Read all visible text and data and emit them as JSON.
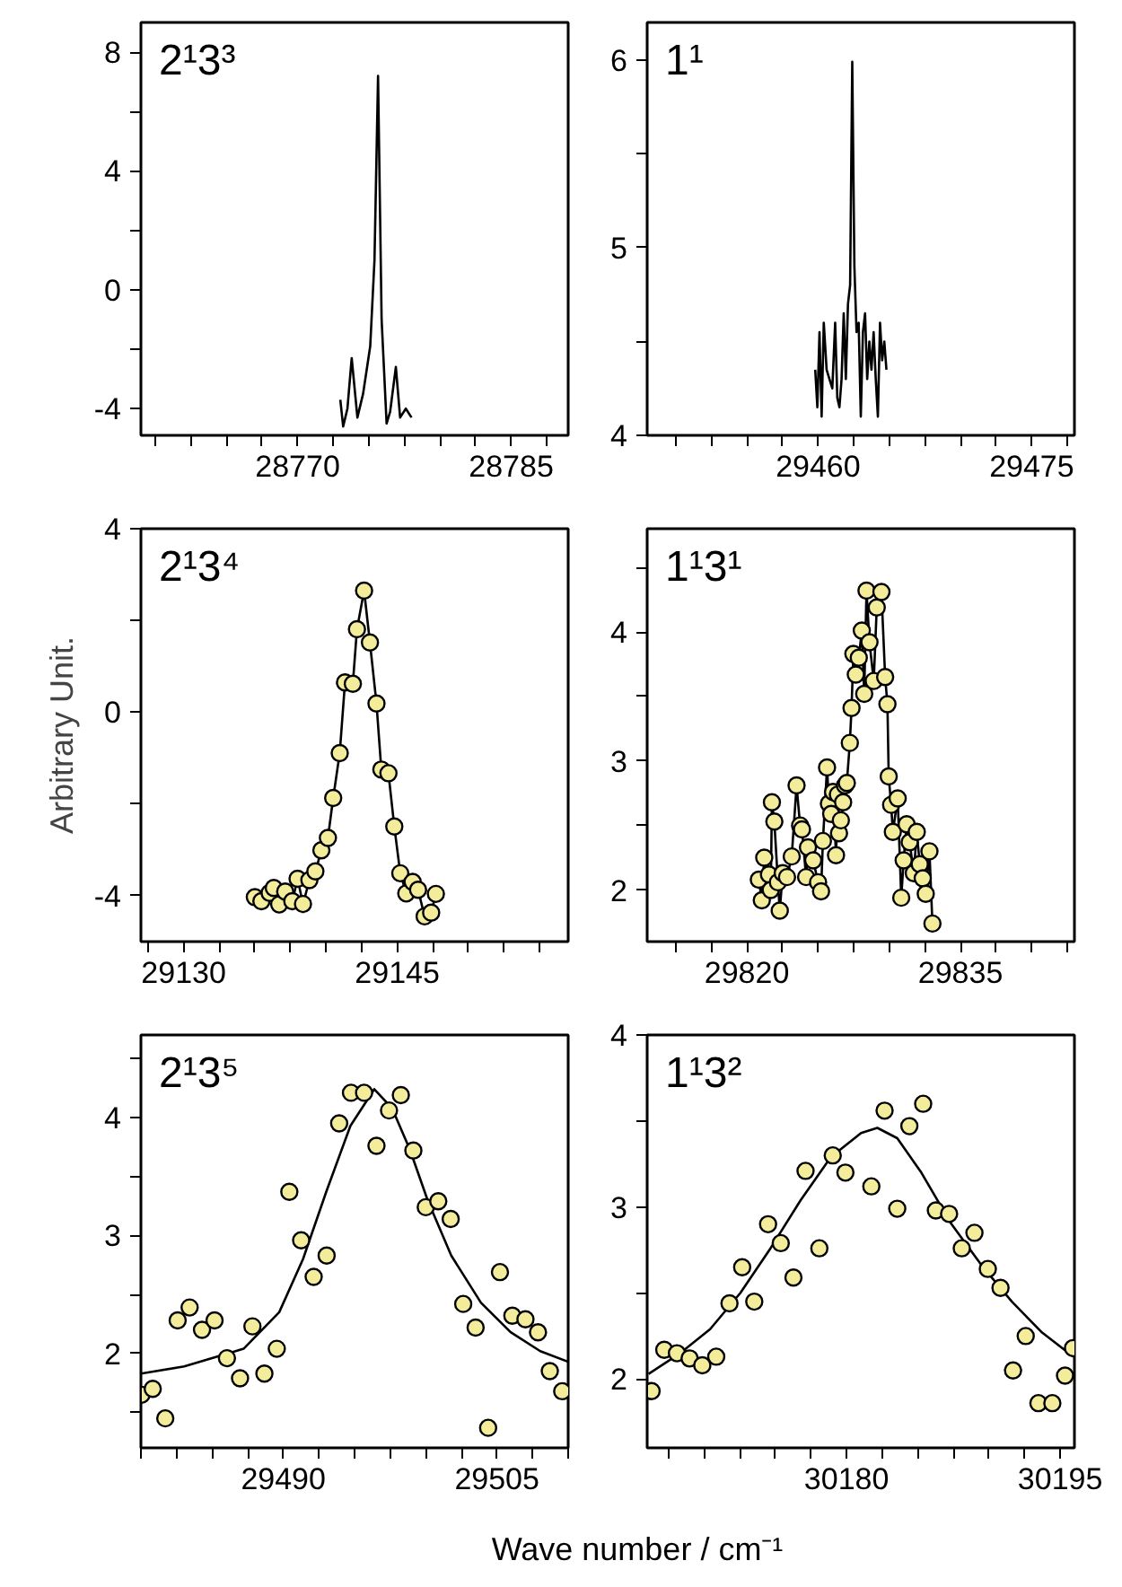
{
  "chart_data": [
    {
      "type": "line",
      "title": "2¹3³",
      "xlim": [
        28759,
        28789
      ],
      "ylim": [
        -4.9,
        9
      ],
      "xticks": [
        {
          "value": 28760,
          "label": null
        },
        {
          "value": 28762.5,
          "label": null
        },
        {
          "value": 28765,
          "label": null
        },
        {
          "value": 28767.5,
          "label": null
        },
        28770,
        {
          "value": 28772.5,
          "label": null
        },
        {
          "value": 28775,
          "label": null
        },
        {
          "value": 28777.5,
          "label": null
        },
        {
          "value": 28780,
          "label": null
        },
        {
          "value": 28782.5,
          "label": null
        },
        28785,
        {
          "value": 28787.5,
          "label": null
        }
      ],
      "yticks": [
        -4,
        {
          "value": -2,
          "label": null
        },
        0,
        {
          "value": 2,
          "label": null
        },
        4,
        {
          "value": 6,
          "label": null
        },
        8
      ],
      "series": [
        {
          "color": "#000000",
          "x": [
            28773.0,
            28773.2,
            28773.5,
            28773.8,
            28774.2,
            28774.6,
            28775.1,
            28775.4,
            28775.65,
            28775.9,
            28776.25,
            28776.5,
            28776.9,
            28777.2,
            28777.6,
            28778.0
          ],
          "values": [
            -3.7,
            -4.6,
            -4.0,
            -2.3,
            -4.3,
            -3.5,
            -1.9,
            1.0,
            7.2,
            -1.0,
            -4.5,
            -4.1,
            -2.6,
            -4.3,
            -4.0,
            -4.3
          ]
        }
      ]
    },
    {
      "type": "line",
      "title": "1¹",
      "xlim": [
        29448,
        29478
      ],
      "ylim": [
        4,
        6.2
      ],
      "xticks": [
        {
          "value": 29450,
          "label": null
        },
        {
          "value": 29452.5,
          "label": null
        },
        {
          "value": 29455,
          "label": null
        },
        {
          "value": 29457.5,
          "label": null
        },
        29460,
        {
          "value": 29462.5,
          "label": null
        },
        {
          "value": 29465,
          "label": null
        },
        {
          "value": 29467.5,
          "label": null
        },
        {
          "value": 29470,
          "label": null
        },
        {
          "value": 29472.5,
          "label": null
        },
        29475,
        {
          "value": 29477.5,
          "label": null
        }
      ],
      "yticks": [
        4,
        {
          "value": 4.5,
          "label": null
        },
        5,
        {
          "value": 5.5,
          "label": null
        },
        6
      ],
      "series": [
        {
          "color": "#000000",
          "x": [
            29459.8,
            29459.95,
            29460.1,
            29460.25,
            29460.4,
            29460.6,
            29460.8,
            29461.0,
            29461.2,
            29461.35,
            29461.5,
            29461.65,
            29461.8,
            29461.95,
            29462.1,
            29462.25,
            29462.4,
            29462.55,
            29462.7,
            29462.85,
            29463.0,
            29463.15,
            29463.3,
            29463.45,
            29463.6,
            29463.75,
            29463.9,
            29464.05,
            29464.2,
            29464.35,
            29464.5,
            29464.65,
            29464.8
          ],
          "values": [
            4.35,
            4.15,
            4.55,
            4.1,
            4.6,
            4.35,
            4.3,
            4.25,
            4.6,
            4.2,
            4.15,
            4.3,
            4.65,
            4.3,
            4.7,
            4.8,
            5.99,
            4.9,
            4.55,
            4.6,
            4.1,
            4.55,
            4.65,
            4.3,
            4.5,
            4.35,
            4.55,
            4.3,
            4.1,
            4.6,
            4.4,
            4.5,
            4.35
          ]
        }
      ]
    },
    {
      "type": "scatter",
      "title": "2¹3⁴",
      "ylabel": "Arbitrary Unit.",
      "xlim": [
        29127,
        29157
      ],
      "ylim": [
        -5,
        4
      ],
      "xticks": [
        {
          "value": 29127.5,
          "label": null
        },
        29130,
        {
          "value": 29132.5,
          "label": null
        },
        {
          "value": 29135,
          "label": null
        },
        {
          "value": 29137.5,
          "label": null
        },
        {
          "value": 29140,
          "label": null
        },
        {
          "value": 29142.5,
          "label": null
        },
        29145,
        {
          "value": 29147.5,
          "label": null
        },
        {
          "value": 29150,
          "label": null
        },
        {
          "value": 29152.5,
          "label": null
        },
        {
          "value": 29155,
          "label": null
        }
      ],
      "yticks": [
        -4,
        {
          "value": -2,
          "label": null
        },
        0,
        {
          "value": 2,
          "label": null
        },
        4
      ],
      "series": [
        {
          "type": "line",
          "color": "#000000",
          "x": [
            29135.0,
            29135.46,
            29136.04,
            29136.33,
            29136.71,
            29137.13,
            29137.63,
            29138.0,
            29138.38,
            29138.83,
            29139.25,
            29139.67,
            29140.13,
            29140.5,
            29140.96,
            29141.33,
            29141.88,
            29142.17,
            29142.67,
            29143.08,
            29143.54,
            29143.88,
            29144.38,
            29144.79,
            29145.21,
            29145.63,
            29146.08,
            29146.46,
            29146.92,
            29147.38,
            29147.71
          ],
          "values": [
            -4.03,
            -4.12,
            -3.94,
            -3.83,
            -4.19,
            -3.91,
            -4.12,
            -3.63,
            -4.18,
            -3.66,
            -3.47,
            -3.01,
            -2.74,
            -1.87,
            -0.89,
            0.65,
            0.62,
            1.81,
            2.65,
            1.52,
            0.19,
            -1.25,
            -1.33,
            -2.49,
            -3.51,
            -3.95,
            -3.7,
            -3.87,
            -4.45,
            -4.37,
            -3.96
          ]
        },
        {
          "marker": "circle",
          "color": "#f2ec9b",
          "x": [
            29135.0,
            29135.46,
            29136.04,
            29136.33,
            29136.71,
            29137.13,
            29137.63,
            29138.0,
            29138.38,
            29138.83,
            29139.25,
            29139.67,
            29140.13,
            29140.5,
            29140.96,
            29141.33,
            29141.88,
            29142.17,
            29142.67,
            29143.08,
            29143.54,
            29143.88,
            29144.38,
            29144.79,
            29145.21,
            29145.63,
            29146.08,
            29146.46,
            29146.92,
            29147.38,
            29147.71
          ],
          "values": [
            -4.03,
            -4.12,
            -3.94,
            -3.83,
            -4.19,
            -3.91,
            -4.12,
            -3.63,
            -4.18,
            -3.66,
            -3.47,
            -3.01,
            -2.74,
            -1.87,
            -0.89,
            0.65,
            0.62,
            1.81,
            2.65,
            1.52,
            0.19,
            -1.25,
            -1.33,
            -2.49,
            -3.51,
            -3.95,
            -3.7,
            -3.87,
            -4.45,
            -4.37,
            -3.96
          ]
        }
      ]
    },
    {
      "type": "scatter",
      "title": "1¹3¹",
      "xlim": [
        29813,
        29843
      ],
      "ylim": [
        1.6,
        4.8
      ],
      "xticks": [
        {
          "value": 29815,
          "label": null
        },
        {
          "value": 29817.5,
          "label": null
        },
        29820,
        {
          "value": 29822.5,
          "label": null
        },
        {
          "value": 29825,
          "label": null
        },
        {
          "value": 29827.5,
          "label": null
        },
        {
          "value": 29830,
          "label": null
        },
        {
          "value": 29832.5,
          "label": null
        },
        29835,
        {
          "value": 29837.5,
          "label": null
        },
        {
          "value": 29840,
          "label": null
        },
        {
          "value": 29842.5,
          "label": null
        }
      ],
      "yticks": [
        2,
        {
          "value": 2.5,
          "label": null
        },
        3,
        {
          "value": 3.5,
          "label": null
        },
        4,
        {
          "value": 4.5,
          "label": null
        }
      ],
      "series": [
        {
          "type": "line",
          "color": "#000000",
          "x": [
            29820.84,
            29821.05,
            29821.22,
            29821.55,
            29821.68,
            29821.76,
            29821.93,
            29822.18,
            29822.31,
            29822.52,
            29822.82,
            29823.15,
            29823.49,
            29823.74,
            29823.87,
            29824.16,
            29824.29,
            29824.66,
            29825.0,
            29825.21,
            29825.34,
            29825.63,
            29825.76,
            29825.92,
            29826.05,
            29826.26,
            29826.39,
            29826.47,
            29826.6,
            29826.76,
            29826.89,
            29827.02,
            29827.23,
            29827.35,
            29827.48,
            29827.65,
            29827.86,
            29828.07,
            29828.24,
            29828.4,
            29828.61,
            29828.91,
            29829.12,
            29829.45,
            29829.71,
            29829.87,
            29829.96,
            29830.13,
            29830.25,
            29830.59,
            29830.84,
            29831.01,
            29831.22,
            29831.43,
            29831.72,
            29831.93,
            29832.14,
            29832.35,
            29832.56,
            29832.82,
            29833.03
          ],
          "values": [
            2.08,
            1.92,
            2.25,
            2.12,
            2.0,
            2.68,
            2.53,
            2.06,
            1.84,
            2.13,
            2.1,
            2.26,
            2.81,
            2.5,
            2.47,
            2.1,
            2.33,
            2.23,
            2.06,
            1.99,
            2.38,
            2.95,
            2.67,
            2.59,
            2.76,
            2.27,
            2.74,
            2.44,
            2.54,
            2.68,
            2.81,
            2.83,
            3.14,
            3.41,
            3.83,
            3.67,
            3.8,
            4.01,
            3.52,
            4.32,
            3.92,
            3.62,
            4.19,
            4.31,
            3.65,
            3.44,
            2.88,
            2.66,
            2.45,
            2.71,
            1.94,
            2.23,
            2.51,
            2.37,
            2.13,
            2.45,
            2.2,
            2.09,
            1.97,
            2.3,
            1.74
          ]
        },
        {
          "marker": "circle",
          "color": "#f2ec9b",
          "x": [
            29820.84,
            29821.05,
            29821.22,
            29821.55,
            29821.68,
            29821.76,
            29821.93,
            29822.18,
            29822.31,
            29822.52,
            29822.82,
            29823.15,
            29823.49,
            29823.74,
            29823.87,
            29824.16,
            29824.29,
            29824.66,
            29825.0,
            29825.21,
            29825.34,
            29825.63,
            29825.76,
            29825.92,
            29826.05,
            29826.26,
            29826.39,
            29826.47,
            29826.6,
            29826.76,
            29826.89,
            29827.02,
            29827.23,
            29827.35,
            29827.48,
            29827.65,
            29827.86,
            29828.07,
            29828.24,
            29828.4,
            29828.61,
            29828.91,
            29829.12,
            29829.45,
            29829.71,
            29829.87,
            29829.96,
            29830.13,
            29830.25,
            29830.59,
            29830.84,
            29831.01,
            29831.22,
            29831.43,
            29831.72,
            29831.93,
            29832.14,
            29832.35,
            29832.56,
            29832.82,
            29833.03
          ],
          "values": [
            2.08,
            1.92,
            2.25,
            2.12,
            2.0,
            2.68,
            2.53,
            2.06,
            1.84,
            2.13,
            2.1,
            2.26,
            2.81,
            2.5,
            2.47,
            2.1,
            2.33,
            2.23,
            2.06,
            1.99,
            2.38,
            2.95,
            2.67,
            2.59,
            2.76,
            2.27,
            2.74,
            2.44,
            2.54,
            2.68,
            2.81,
            2.83,
            3.14,
            3.41,
            3.83,
            3.67,
            3.8,
            4.01,
            3.52,
            4.32,
            3.92,
            3.62,
            4.19,
            4.31,
            3.65,
            3.44,
            2.88,
            2.66,
            2.45,
            2.71,
            1.94,
            2.23,
            2.51,
            2.37,
            2.13,
            2.45,
            2.2,
            2.09,
            1.97,
            2.3,
            1.74
          ]
        }
      ]
    },
    {
      "type": "scatter",
      "title": "2¹3⁵",
      "xlabel": "Wave number / cm⁻¹",
      "xlim": [
        29480,
        29510
      ],
      "ylim": [
        1.2,
        4.7
      ],
      "xticks": [
        {
          "value": 29480,
          "label": null
        },
        {
          "value": 29482.5,
          "label": null
        },
        {
          "value": 29485,
          "label": null
        },
        {
          "value": 29487.5,
          "label": null
        },
        29490,
        {
          "value": 29492.5,
          "label": null
        },
        {
          "value": 29495,
          "label": null
        },
        {
          "value": 29497.5,
          "label": null
        },
        {
          "value": 29500,
          "label": null
        },
        {
          "value": 29502.5,
          "label": null
        },
        29505,
        {
          "value": 29507.5,
          "label": null
        },
        {
          "value": 29510,
          "label": null
        }
      ],
      "yticks": [
        {
          "value": 1.5,
          "label": null
        },
        2,
        {
          "value": 2.5,
          "label": null
        },
        3,
        {
          "value": 3.5,
          "label": null
        },
        4,
        {
          "value": 4.5,
          "label": null
        }
      ],
      "series": [
        {
          "type": "line",
          "color": "#000000",
          "x": [
            29480,
            29483.04,
            29487.21,
            29489.71,
            29491.38,
            29493.04,
            29494.71,
            29496.38,
            29497.63,
            29498.88,
            29500.13,
            29501.79,
            29503.88,
            29505.96,
            29508.04,
            29510
          ],
          "values": [
            1.83,
            1.89,
            2.04,
            2.35,
            2.8,
            3.38,
            3.93,
            4.24,
            4.08,
            3.73,
            3.3,
            2.83,
            2.43,
            2.18,
            2.02,
            1.93
          ]
        },
        {
          "marker": "circle",
          "color": "#f2ec9b",
          "x": [
            29480.04,
            29480.83,
            29481.71,
            29482.58,
            29483.42,
            29484.29,
            29485.17,
            29486.04,
            29486.96,
            29487.83,
            29488.67,
            29489.54,
            29490.42,
            29491.25,
            29492.13,
            29493.04,
            29493.92,
            29494.75,
            29495.67,
            29496.54,
            29497.42,
            29498.25,
            29499.13,
            29500.0,
            29500.88,
            29501.75,
            29502.63,
            29503.5,
            29504.38,
            29505.21,
            29506.08,
            29507.0,
            29507.88,
            29508.71,
            29509.58
          ],
          "values": [
            1.65,
            1.7,
            1.45,
            2.28,
            2.39,
            2.2,
            2.28,
            1.96,
            1.79,
            2.23,
            1.83,
            2.04,
            3.37,
            2.96,
            2.65,
            2.83,
            3.95,
            4.21,
            4.21,
            3.76,
            4.06,
            4.19,
            3.72,
            3.24,
            3.29,
            3.14,
            2.42,
            2.22,
            1.37,
            2.69,
            2.32,
            2.29,
            2.18,
            1.85,
            1.68
          ]
        }
      ]
    },
    {
      "type": "scatter",
      "title": "1¹3²",
      "xlim": [
        30166,
        30196
      ],
      "ylim": [
        1.6,
        4
      ],
      "xticks": [
        {
          "value": 30167.5,
          "label": null
        },
        {
          "value": 30170,
          "label": null
        },
        {
          "value": 30172.5,
          "label": null
        },
        {
          "value": 30175,
          "label": null
        },
        {
          "value": 30177.5,
          "label": null
        },
        30180,
        {
          "value": 30182.5,
          "label": null
        },
        {
          "value": 30185,
          "label": null
        },
        {
          "value": 30187.5,
          "label": null
        },
        {
          "value": 30190,
          "label": null
        },
        {
          "value": 30192.5,
          "label": null
        },
        30195
      ],
      "yticks": [
        2,
        {
          "value": 2.5,
          "label": null
        },
        3,
        {
          "value": 3.5,
          "label": null
        },
        4
      ],
      "series": [
        {
          "type": "line",
          "color": "#000000",
          "x": [
            30166.1,
            30168.31,
            30170.42,
            30172.54,
            30174.66,
            30176.78,
            30178.9,
            30181.02,
            30182.16,
            30183.56,
            30185.25,
            30187.37,
            30189.49,
            30191.61,
            30193.73,
            30195.93
          ],
          "values": [
            2.03,
            2.15,
            2.29,
            2.5,
            2.76,
            3.04,
            3.29,
            3.43,
            3.46,
            3.4,
            3.2,
            2.9,
            2.66,
            2.45,
            2.27,
            2.13
          ]
        },
        {
          "marker": "circle",
          "color": "#f2ec9b",
          "x": [
            30166.31,
            30167.2,
            30168.09,
            30168.98,
            30169.87,
            30170.85,
            30171.78,
            30172.67,
            30173.52,
            30174.49,
            30175.38,
            30176.27,
            30177.12,
            30178.09,
            30179.03,
            30179.92,
            30181.74,
            30182.67,
            30183.56,
            30184.41,
            30185.38,
            30186.27,
            30187.2,
            30188.09,
            30188.98,
            30189.92,
            30190.81,
            30191.69,
            30192.58,
            30193.47,
            30194.45,
            30195.34,
            30195.9
          ],
          "values": [
            1.93,
            2.17,
            2.15,
            2.12,
            2.08,
            2.13,
            2.44,
            2.65,
            2.45,
            2.9,
            2.79,
            2.59,
            3.21,
            2.76,
            3.3,
            3.2,
            3.12,
            3.56,
            2.99,
            3.47,
            3.6,
            2.98,
            2.96,
            2.76,
            2.85,
            2.64,
            2.53,
            2.05,
            2.25,
            1.86,
            1.86,
            2.02,
            2.18
          ]
        }
      ]
    }
  ]
}
